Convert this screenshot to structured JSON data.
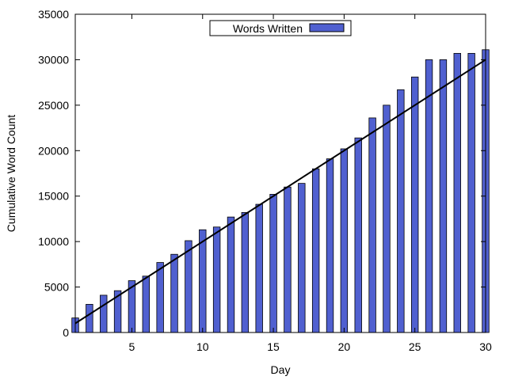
{
  "chart_data": {
    "type": "bar",
    "title": "",
    "xlabel": "Day",
    "ylabel": "Cumulative Word Count",
    "xlim": [
      1,
      30
    ],
    "ylim": [
      0,
      35000
    ],
    "x_ticks": [
      5,
      10,
      15,
      20,
      25,
      30
    ],
    "y_ticks": [
      0,
      5000,
      10000,
      15000,
      20000,
      25000,
      30000,
      35000
    ],
    "grid": false,
    "legend_position": "top-center",
    "series": [
      {
        "name": "Words Written",
        "color": "#5060d0",
        "x": [
          1,
          2,
          3,
          4,
          5,
          6,
          7,
          8,
          9,
          10,
          11,
          12,
          13,
          14,
          15,
          16,
          17,
          18,
          19,
          20,
          21,
          22,
          23,
          24,
          25,
          26,
          27,
          28,
          29,
          30
        ],
        "values": [
          1600,
          3100,
          4100,
          4600,
          5700,
          6200,
          7700,
          8600,
          10100,
          11300,
          11600,
          12700,
          13200,
          14100,
          15200,
          16000,
          16400,
          18000,
          19100,
          20200,
          21400,
          23600,
          25000,
          26700,
          28100,
          30000,
          30000,
          30700,
          30700,
          31100
        ]
      }
    ],
    "reference_line": {
      "from": [
        1,
        1000
      ],
      "to": [
        30,
        30000
      ],
      "color": "#000000"
    }
  }
}
